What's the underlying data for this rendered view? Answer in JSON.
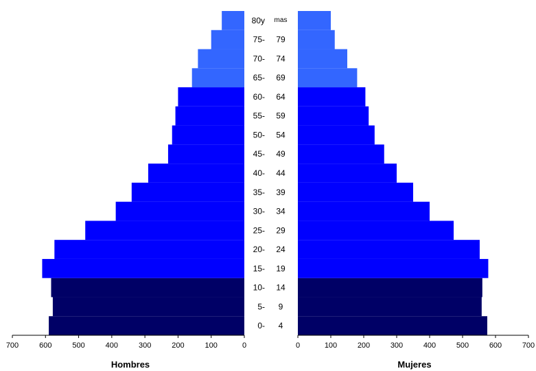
{
  "chart_data": {
    "type": "bar",
    "subtype": "population-pyramid",
    "age_groups_from": [
      "0-",
      "5-",
      "10-",
      "15-",
      "20-",
      "25-",
      "30-",
      "35-",
      "40-",
      "45-",
      "50-",
      "55-",
      "60-",
      "65-",
      "70-",
      "75-",
      "80y"
    ],
    "age_groups_to": [
      "4",
      "9",
      "14",
      "19",
      "24",
      "29",
      "34",
      "39",
      "44",
      "49",
      "54",
      "59",
      "64",
      "69",
      "74",
      "79",
      "mas"
    ],
    "series": [
      {
        "name": "Hombres",
        "values": [
          590,
          578,
          583,
          610,
          573,
          480,
          388,
          340,
          290,
          230,
          218,
          208,
          200,
          158,
          140,
          100,
          68
        ]
      },
      {
        "name": "Mujeres",
        "values": [
          575,
          558,
          560,
          578,
          552,
          473,
          400,
          350,
          300,
          262,
          233,
          215,
          205,
          180,
          150,
          112,
          100
        ]
      }
    ],
    "group_colors": [
      "#000066",
      "#000066",
      "#000066",
      "#0000ff",
      "#0000ff",
      "#0000ff",
      "#0000ff",
      "#0000ff",
      "#0000ff",
      "#0000ff",
      "#0000ff",
      "#0000ff",
      "#0000ff",
      "#3366ff",
      "#3366ff",
      "#3366ff",
      "#3366ff"
    ],
    "xlim": [
      0,
      700
    ],
    "x_ticks": [
      0,
      100,
      200,
      300,
      400,
      500,
      600,
      700
    ],
    "xlabel_left": "Hombres",
    "xlabel_right": "Mujeres",
    "grid": false,
    "legend": "none"
  }
}
